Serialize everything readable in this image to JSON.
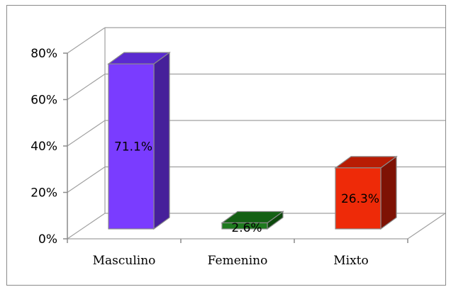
{
  "chart_data": {
    "type": "bar",
    "title": "",
    "xlabel": "",
    "ylabel": "",
    "categories": [
      "Masculino",
      "Femenino",
      "Mixto"
    ],
    "values": [
      71.1,
      2.6,
      26.3
    ],
    "value_labels": [
      "71.1%",
      "2.6%",
      "26.3%"
    ],
    "yticks": [
      0,
      20,
      40,
      60,
      80
    ],
    "ytick_labels": [
      "0%",
      "20%",
      "40%",
      "60%",
      "80%"
    ],
    "ylim": [
      0,
      80
    ],
    "grid": true,
    "style": "3d-column",
    "colors": [
      {
        "front": "#7a3cff",
        "side": "#46209a",
        "top": "#5a2ad0"
      },
      {
        "front": "#1e7a1e",
        "side": "#0c480c",
        "top": "#146014"
      },
      {
        "front": "#ee2a08",
        "side": "#7e1204",
        "top": "#b81c04"
      }
    ],
    "grid_color": "#a0a0a0"
  }
}
